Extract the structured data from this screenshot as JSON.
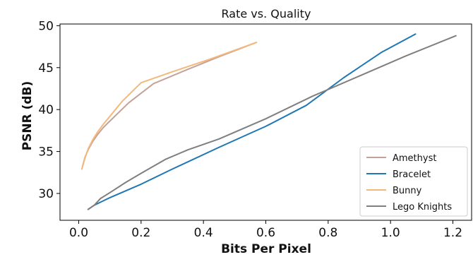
{
  "chart_data": {
    "type": "line",
    "title": "Rate vs. Quality",
    "xlabel": "Bits Per Pixel",
    "ylabel": "PSNR (dB)",
    "xlim": [
      -0.06,
      1.26
    ],
    "ylim": [
      26.8,
      50.2
    ],
    "xticks": [
      0.0,
      0.2,
      0.4,
      0.6,
      0.8,
      1.0,
      1.2
    ],
    "xtick_labels": [
      "0.0",
      "0.2",
      "0.4",
      "0.6",
      "0.8",
      "1.0",
      "1.2"
    ],
    "yticks": [
      30,
      35,
      40,
      45,
      50
    ],
    "ytick_labels": [
      "30",
      "35",
      "40",
      "45",
      "50"
    ],
    "grid": false,
    "legend_position": "bottom-right",
    "series": [
      {
        "name": "Amethyst",
        "color": "#c4a29a",
        "x": [
          0.012,
          0.02,
          0.03,
          0.045,
          0.06,
          0.08,
          0.11,
          0.16,
          0.24,
          0.35,
          0.45,
          0.57
        ],
        "y": [
          33.2,
          34.3,
          35.2,
          36.2,
          37.0,
          37.9,
          39.0,
          40.8,
          43.1,
          44.8,
          46.3,
          48.0
        ]
      },
      {
        "name": "Bracelet",
        "color": "#1f77b4",
        "x": [
          0.03,
          0.05,
          0.1,
          0.2,
          0.3,
          0.45,
          0.6,
          0.73,
          0.85,
          0.97,
          1.08
        ],
        "y": [
          28.1,
          28.6,
          29.5,
          31.1,
          32.9,
          35.5,
          38.0,
          40.5,
          43.8,
          46.8,
          49.0
        ]
      },
      {
        "name": "Bunny",
        "color": "#f4b87a",
        "x": [
          0.01,
          0.02,
          0.03,
          0.045,
          0.06,
          0.08,
          0.1,
          0.14,
          0.2,
          0.3,
          0.42,
          0.57
        ],
        "y": [
          32.9,
          34.2,
          35.3,
          36.4,
          37.3,
          38.3,
          39.2,
          41.0,
          43.2,
          44.5,
          46.0,
          48.0
        ]
      },
      {
        "name": "Lego Knights",
        "color": "#7f7f7f",
        "x": [
          0.03,
          0.05,
          0.07,
          0.1,
          0.15,
          0.2,
          0.28,
          0.35,
          0.45,
          0.6,
          0.75,
          0.9,
          1.05,
          1.21
        ],
        "y": [
          28.1,
          28.6,
          29.4,
          30.1,
          31.3,
          32.4,
          34.1,
          35.2,
          36.5,
          38.9,
          41.6,
          44.0,
          46.4,
          48.8
        ]
      }
    ]
  }
}
